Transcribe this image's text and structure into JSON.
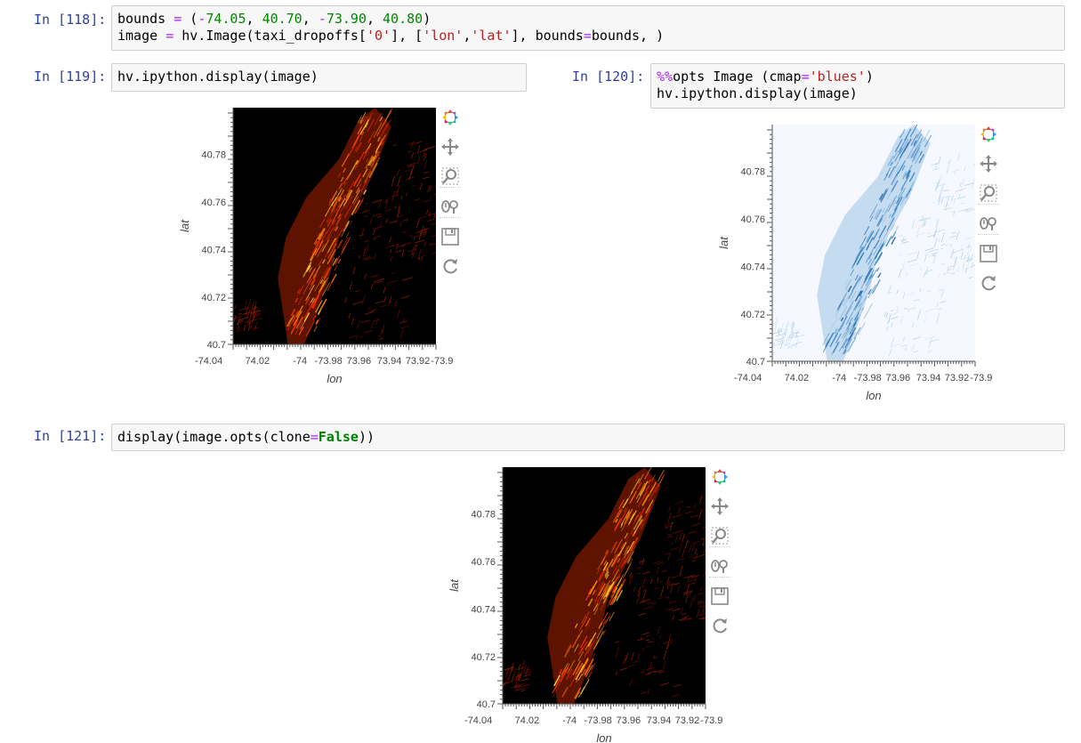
{
  "cells": [
    {
      "prompt": "In [118]:",
      "code_lines": [
        [
          [
            "t",
            "bounds "
          ],
          [
            "o",
            "="
          ],
          [
            "t",
            " ("
          ],
          [
            "o",
            "-"
          ],
          [
            "n",
            "74.05"
          ],
          [
            "t",
            ", "
          ],
          [
            "n",
            "40.70"
          ],
          [
            "t",
            ", "
          ],
          [
            "o",
            "-"
          ],
          [
            "n",
            "73.90"
          ],
          [
            "t",
            ", "
          ],
          [
            "n",
            "40.80"
          ],
          [
            "t",
            ")"
          ]
        ],
        [
          [
            "t",
            "image "
          ],
          [
            "o",
            "="
          ],
          [
            "t",
            " hv.Image(taxi_dropoffs["
          ],
          [
            "s",
            "'0'"
          ],
          [
            "t",
            "], ["
          ],
          [
            "s",
            "'lon'"
          ],
          [
            "t",
            ","
          ],
          [
            "s",
            "'lat'"
          ],
          [
            "t",
            "], bounds"
          ],
          [
            "o",
            "="
          ],
          [
            "t",
            "bounds, )"
          ]
        ]
      ]
    },
    {
      "prompt": "In [119]:",
      "code_lines": [
        [
          [
            "t",
            "hv.ipython.display(image)"
          ]
        ]
      ]
    },
    {
      "prompt": "In [120]:",
      "code_lines": [
        [
          [
            "m",
            "%%"
          ],
          [
            "t",
            "opts Image ("
          ],
          [
            "t",
            "cmap"
          ],
          [
            "o",
            "="
          ],
          [
            "s",
            "'blues'"
          ],
          [
            "t",
            ")"
          ]
        ],
        [
          [
            "t",
            "hv.ipython.display(image)"
          ]
        ]
      ]
    },
    {
      "prompt": "In [121]:",
      "code_lines": [
        [
          [
            "t",
            "display"
          ],
          [
            "t",
            "(image.opts(clone"
          ],
          [
            "o",
            "="
          ],
          [
            "k",
            "False"
          ],
          [
            "t",
            "))"
          ]
        ]
      ]
    }
  ],
  "plots": [
    {
      "name": "plot-119",
      "colormap": "fire",
      "background": "#000000",
      "xlabel": "lon",
      "ylabel": "lat",
      "x_ticks": [
        "-74.04",
        "74.02",
        "-74",
        "-73.98",
        "73.96",
        "73.94",
        "73.92",
        "-73.9"
      ],
      "y_ticks": [
        "40.78",
        "40.76",
        "40.74",
        "40.72",
        "40.7"
      ]
    },
    {
      "name": "plot-120",
      "colormap": "blues",
      "background": "#f5f9ff",
      "xlabel": "lon",
      "ylabel": "lat",
      "x_ticks": [
        "-74.04",
        "74.02",
        "-74",
        "-73.98",
        "73.96",
        "73.94",
        "73.92",
        "-73.9"
      ],
      "y_ticks": [
        "40.78",
        "40.76",
        "40.74",
        "40.72",
        "40.7"
      ]
    },
    {
      "name": "plot-121",
      "colormap": "fire",
      "background": "#000000",
      "xlabel": "lon",
      "ylabel": "lat",
      "x_ticks": [
        "-74.04",
        "74.02",
        "-74",
        "-73.98",
        "73.96",
        "73.94",
        "73.92",
        "-73.9"
      ],
      "y_ticks": [
        "40.78",
        "40.76",
        "40.74",
        "40.72",
        "40.7"
      ]
    }
  ],
  "toolbar_tools": [
    "bokeh-logo-icon",
    "pan-icon",
    "box-zoom-icon",
    "wheel-zoom-icon",
    "save-icon",
    "reset-icon"
  ],
  "colors": {
    "prompt": "#303f9f",
    "cell_bg": "#f7f7f7",
    "cell_border": "#cfcfcf",
    "active_tool": "#26aae1"
  }
}
